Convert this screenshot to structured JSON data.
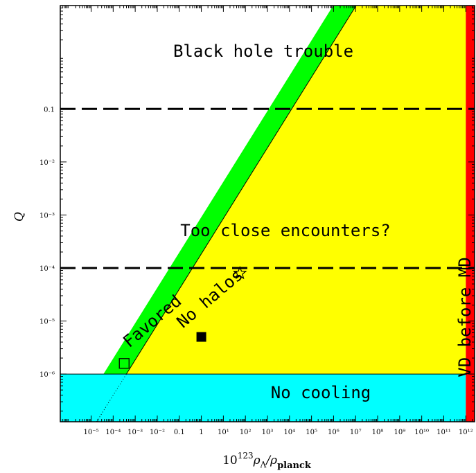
{
  "chart_data": {
    "type": "area",
    "x_scale": "log",
    "y_scale": "log",
    "xlim_log10": [
      -6.4,
      12.4
    ],
    "ylim_log10": [
      -6.9,
      0.95
    ],
    "xticks": [
      {
        "log": -5,
        "label": "10⁻⁵"
      },
      {
        "log": -4,
        "label": "10⁻⁴"
      },
      {
        "log": -3,
        "label": "10⁻³"
      },
      {
        "log": -2,
        "label": "10⁻²"
      },
      {
        "log": -1,
        "label": "0.1"
      },
      {
        "log": 0,
        "label": "1"
      },
      {
        "log": 1,
        "label": "10¹"
      },
      {
        "log": 2,
        "label": "10²"
      },
      {
        "log": 3,
        "label": "10³"
      },
      {
        "log": 4,
        "label": "10⁴"
      },
      {
        "log": 5,
        "label": "10⁵"
      },
      {
        "log": 6,
        "label": "10⁶"
      },
      {
        "log": 7,
        "label": "10⁷"
      },
      {
        "log": 8,
        "label": "10⁸"
      },
      {
        "log": 9,
        "label": "10⁹"
      },
      {
        "log": 10,
        "label": "10¹⁰"
      },
      {
        "log": 11,
        "label": "10¹¹"
      },
      {
        "log": 12,
        "label": "10¹²"
      }
    ],
    "yticks": [
      {
        "log": -6,
        "label": "10⁻⁶"
      },
      {
        "log": -5,
        "label": "10⁻⁵"
      },
      {
        "log": -4,
        "label": "10⁻⁴"
      },
      {
        "log": -3,
        "label": "10⁻³"
      },
      {
        "log": -2,
        "label": "10⁻²"
      },
      {
        "log": -1,
        "label": "0.1"
      }
    ],
    "xlabel": {
      "base": "10",
      "sup": "123",
      "rho": "ρ",
      "sub1": "Λ",
      "slash": "/ρ",
      "sub2": "planck"
    },
    "ylabel": "Q",
    "regions": {
      "no_cooling": {
        "label": "No cooling",
        "color": "#00ffff",
        "q_max_log": -6
      },
      "no_halos": {
        "label": "No halos",
        "color": "#ffff00",
        "boundary_log": {
          "x0": -3.4,
          "q0": -6,
          "slope": 0.6667
        }
      },
      "favored": {
        "label": "Favored",
        "color": "#00ff00",
        "offset_log_x": -1.04
      },
      "vd_before_md": {
        "label": "VD before MD",
        "color": "#ff0000",
        "x_min_log": 12
      }
    },
    "hlines": [
      {
        "q_log": -1,
        "label": "Black hole trouble",
        "style": "dashed"
      },
      {
        "q_log": -4,
        "label": "Too close encounters?",
        "style": "dashed"
      }
    ],
    "markers": [
      {
        "shape": "open-square",
        "x_log": -3.5,
        "q_log": -5.8
      },
      {
        "shape": "filled-square",
        "x_log": 0,
        "q_log": -5.3
      },
      {
        "shape": "open-star",
        "x_log": 1.75,
        "q_log": -4.1
      }
    ]
  }
}
